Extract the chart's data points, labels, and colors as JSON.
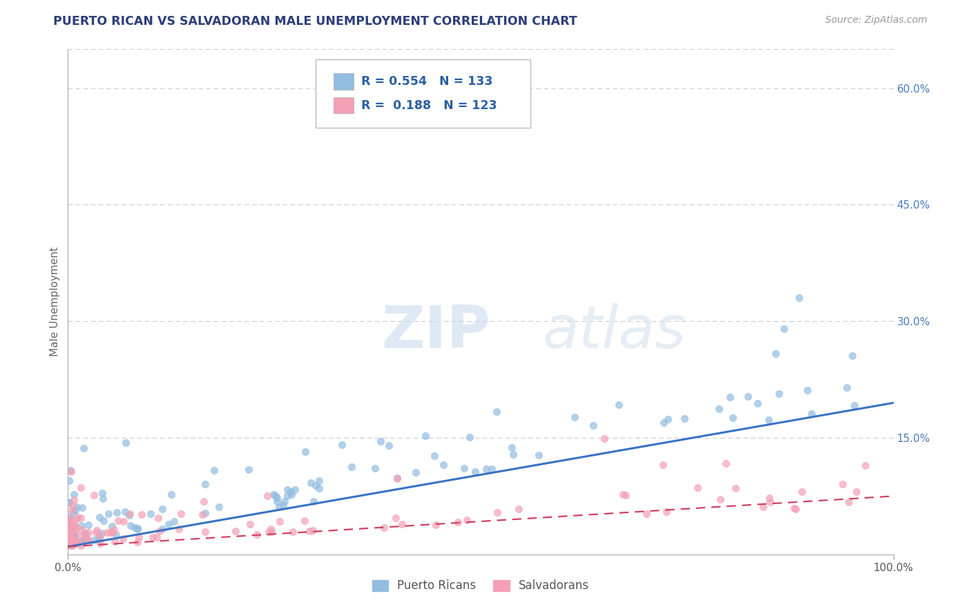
{
  "title": "PUERTO RICAN VS SALVADORAN MALE UNEMPLOYMENT CORRELATION CHART",
  "source_text": "Source: ZipAtlas.com",
  "ylabel": "Male Unemployment",
  "xlim": [
    0.0,
    1.0
  ],
  "ylim": [
    0.0,
    0.65
  ],
  "ytick_positions": [
    0.15,
    0.3,
    0.45,
    0.6
  ],
  "ytick_labels": [
    "15.0%",
    "30.0%",
    "45.0%",
    "60.0%"
  ],
  "pr_color": "#92bce0",
  "salv_color": "#f4a0b5",
  "pr_line_color": "#3a72c4",
  "salv_line_color": "#d04060",
  "pr_R": 0.554,
  "pr_N": 133,
  "salv_R": 0.188,
  "salv_N": 123,
  "watermark_zip": "ZIP",
  "watermark_atlas": "atlas",
  "title_color": "#2c3e7a",
  "legend_text_color": "#2c5fa0",
  "background_color": "#ffffff",
  "grid_color": "#cccccc",
  "pr_line_start_y": 0.01,
  "pr_line_end_y": 0.195,
  "salv_line_start_y": 0.01,
  "salv_line_end_y": 0.075
}
